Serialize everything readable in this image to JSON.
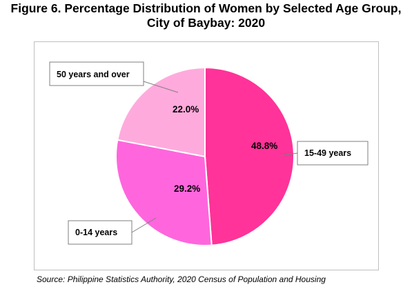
{
  "title_line1": "Figure 6. Percentage Distribution of Women by Selected Age Group,",
  "title_line2": "City of Baybay: 2020",
  "source": "Source: Philippine Statistics Authority, 2020 Census of Population and Housing",
  "chart_data": {
    "type": "pie",
    "title": "Figure 6. Percentage Distribution of Women by Selected Age Group, City of Baybay: 2020",
    "categories": [
      "15-49 years",
      "0-14 years",
      "50 years and over"
    ],
    "values": [
      48.8,
      29.2,
      22.0
    ],
    "data_labels": [
      "48.8%",
      "29.2%",
      "22.0%"
    ],
    "colors": [
      "#ff3399",
      "#ff66dd",
      "#ffaadd"
    ],
    "legend": "none (callout labels)"
  }
}
